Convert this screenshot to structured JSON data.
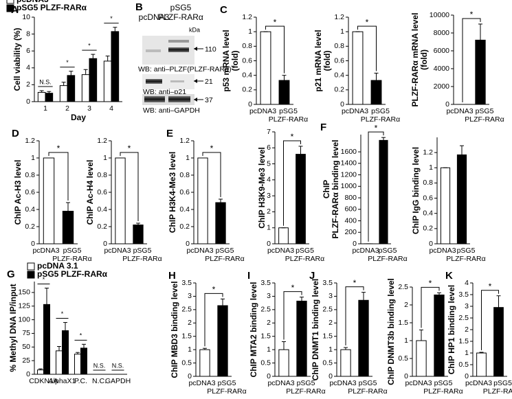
{
  "chart_data": [
    {
      "type": "bar",
      "panel": "A",
      "ylabel": [
        "Cell viability (%)"
      ],
      "xlabel": "Day",
      "categories": [
        [
          "1"
        ],
        [
          "2"
        ],
        [
          "3"
        ],
        [
          "4"
        ]
      ],
      "series": [
        {
          "name": "pcDNA3",
          "color": "#ffffff",
          "values": [
            1.1,
            1.9,
            3.2,
            4.8
          ],
          "errors": [
            0.2,
            0.4,
            0.6,
            0.6
          ]
        },
        {
          "name": "pSG5 PLZF-RARα",
          "color": "#000000",
          "values": [
            1.0,
            3.1,
            5.1,
            8.3
          ],
          "errors": [
            0.2,
            0.5,
            0.5,
            0.5
          ]
        }
      ],
      "annotations": [
        "N.S.",
        "*",
        "*",
        "*"
      ],
      "ylim": [
        0,
        10
      ],
      "yticks": [
        0,
        2,
        4,
        6,
        8,
        10
      ]
    },
    {
      "type": "bar",
      "panel": "C",
      "ylabel": [
        "p53 mRNA level",
        "(fold)"
      ],
      "categories": [
        [
          "pcDNA3"
        ],
        [
          "pSG5",
          "PLZF-RARα"
        ]
      ],
      "values": [
        1,
        0.33
      ],
      "errors": [
        0,
        0.07
      ],
      "colors": [
        "#ffffff",
        "#000000"
      ],
      "annotation": "*",
      "ylim": [
        0,
        1.2
      ],
      "yticks": [
        0,
        0.2,
        0.4,
        0.6,
        0.8,
        1,
        1.2
      ]
    },
    {
      "type": "bar",
      "ylabel": [
        "p21 mRNA level",
        "(fold)"
      ],
      "categories": [
        [
          "pcDNA3"
        ],
        [
          "pSG5",
          "PLZF-RARα"
        ]
      ],
      "values": [
        1,
        0.33
      ],
      "errors": [
        0,
        0.1
      ],
      "colors": [
        "#ffffff",
        "#000000"
      ],
      "annotation": "*",
      "ylim": [
        0,
        1.2
      ],
      "yticks": [
        0,
        0.2,
        0.4,
        0.6,
        0.8,
        1,
        1.2
      ]
    },
    {
      "type": "bar",
      "ylabel": [
        "PLZF-RARα mRNA level",
        "(fold)"
      ],
      "categories": [
        [
          "pcDNA3"
        ],
        [
          "pSG5",
          "PLZF-RARα"
        ]
      ],
      "values": [
        1,
        7200
      ],
      "errors": [
        0,
        1800
      ],
      "colors": [
        "#ffffff",
        "#000000"
      ],
      "annotation": "*",
      "ylim": [
        0,
        10000
      ],
      "yticks": [
        0,
        2000,
        4000,
        6000,
        8000,
        10000
      ]
    },
    {
      "type": "bar",
      "panel": "D",
      "ylabel": [
        "ChIP Ac-H3 level"
      ],
      "categories": [
        [
          "pcDNA3"
        ],
        [
          "pSG5",
          "PLZF-RARα"
        ]
      ],
      "values": [
        1,
        0.38
      ],
      "errors": [
        0,
        0.1
      ],
      "colors": [
        "#ffffff",
        "#000000"
      ],
      "annotation": "*",
      "ylim": [
        0,
        1.2
      ],
      "yticks": [
        0,
        0.2,
        0.4,
        0.6,
        0.8,
        1,
        1.2
      ]
    },
    {
      "type": "bar",
      "ylabel": [
        "ChIP Ac-H4 level"
      ],
      "categories": [
        [
          "pcDNA3"
        ],
        [
          "pSG5",
          "PLZF-RARα"
        ]
      ],
      "values": [
        1,
        0.22
      ],
      "errors": [
        0,
        0.02
      ],
      "colors": [
        "#ffffff",
        "#000000"
      ],
      "annotation": "*",
      "ylim": [
        0,
        1.2
      ],
      "yticks": [
        0,
        0.2,
        0.4,
        0.6,
        0.8,
        1,
        1.2
      ]
    },
    {
      "type": "bar",
      "panel": "E",
      "ylabel": [
        "ChIP H3K4-Me3 level"
      ],
      "categories": [
        [
          "pcDNA3"
        ],
        [
          "pSG5",
          "PLZF-RARα"
        ]
      ],
      "values": [
        1,
        0.48
      ],
      "errors": [
        0,
        0.04
      ],
      "colors": [
        "#ffffff",
        "#000000"
      ],
      "annotation": "*",
      "ylim": [
        0,
        1.2
      ],
      "yticks": [
        0,
        0.2,
        0.4,
        0.6,
        0.8,
        1,
        1.2
      ]
    },
    {
      "type": "bar",
      "ylabel": [
        "ChIP H3K9-Me3 level"
      ],
      "categories": [
        [
          "pcDNA3"
        ],
        [
          "pSG5",
          "PLZF-RARα"
        ]
      ],
      "values": [
        1,
        5.6
      ],
      "errors": [
        0,
        0.5
      ],
      "colors": [
        "#ffffff",
        "#000000"
      ],
      "annotation": "*",
      "ylim": [
        0,
        7
      ],
      "yticks": [
        0,
        1,
        2,
        3,
        4,
        5,
        6,
        7
      ]
    },
    {
      "type": "bar",
      "panel": "F",
      "ylabel": [
        "ChIP",
        "PLZF-RARα binding level"
      ],
      "categories": [
        [
          "pcDNA3"
        ],
        [
          "pSG5",
          "PLZF-RARα"
        ]
      ],
      "values": [
        1,
        1800
      ],
      "errors": [
        0,
        50
      ],
      "colors": [
        "#ffffff",
        "#000000"
      ],
      "annotation": "*",
      "ylim": [
        0,
        1900
      ],
      "yticks": [
        0,
        200,
        400,
        600,
        800,
        1000,
        1200,
        1400,
        1600
      ]
    },
    {
      "type": "bar",
      "ylabel": [
        "ChIP IgG binding level"
      ],
      "categories": [
        [
          "pcDNA3"
        ],
        [
          "pSG5",
          "PLZF-RARα"
        ]
      ],
      "values": [
        1,
        1.17
      ],
      "errors": [
        0,
        0.12
      ],
      "colors": [
        "#ffffff",
        "#000000"
      ],
      "ylim": [
        0,
        1.4
      ],
      "yticks": [
        0,
        0.2,
        0.4,
        0.6,
        0.8,
        1,
        1.2
      ]
    },
    {
      "type": "bar",
      "panel": "G",
      "ylabel": [
        "% Methyl DNA IP/input"
      ],
      "categories": [
        [
          "CDKN1A"
        ],
        [
          "AlphaX1"
        ],
        [
          "P.C."
        ],
        [
          "N.C."
        ],
        [
          "GAPDH"
        ]
      ],
      "series": [
        {
          "name": "pcDNA 3.1",
          "color": "#ffffff",
          "values": [
            8,
            43,
            37,
            0,
            0
          ],
          "errors": [
            2,
            8,
            3,
            0,
            0
          ]
        },
        {
          "name": "pSG5 PLZF-RARα",
          "color": "#000000",
          "values": [
            128,
            80,
            48,
            0,
            0
          ],
          "errors": [
            30,
            15,
            7,
            0,
            0
          ]
        }
      ],
      "annotations": [
        "*",
        "*",
        "*",
        "N.S.",
        "N.S."
      ],
      "ylim": [
        0,
        170
      ],
      "yticks": [
        0,
        25,
        50,
        75,
        100,
        125,
        150
      ]
    },
    {
      "type": "bar",
      "panel": "H",
      "ylabel": [
        "ChIP MBD3 binding level"
      ],
      "categories": [
        [
          "pcDNA3"
        ],
        [
          "pSG5",
          "PLZF-RARα"
        ]
      ],
      "values": [
        1,
        2.65
      ],
      "errors": [
        0.05,
        0.25
      ],
      "colors": [
        "#ffffff",
        "#000000"
      ],
      "annotation": "*",
      "ylim": [
        0,
        3.5
      ],
      "yticks": [
        0,
        0.5,
        1,
        1.5,
        2,
        2.5,
        3,
        3.5
      ]
    },
    {
      "type": "bar",
      "panel": "I",
      "ylabel": [
        "ChIP MTA2 binding level"
      ],
      "categories": [
        [
          "pcDNA3"
        ],
        [
          "pSG5",
          "PLZF-RARα"
        ]
      ],
      "values": [
        1,
        2.82
      ],
      "errors": [
        0.3,
        0.15
      ],
      "colors": [
        "#ffffff",
        "#000000"
      ],
      "annotation": "*",
      "ylim": [
        0,
        3.5
      ],
      "yticks": [
        0,
        0.5,
        1,
        1.5,
        2,
        2.5,
        3,
        3.5
      ]
    },
    {
      "type": "bar",
      "panel": "J",
      "ylabel": [
        "ChIP DNMT1 binding level"
      ],
      "categories": [
        [
          "pcDNA3"
        ],
        [
          "pSG5",
          "PLZF-RARα"
        ]
      ],
      "values": [
        1,
        2.85
      ],
      "errors": [
        0.08,
        0.3
      ],
      "colors": [
        "#ffffff",
        "#000000"
      ],
      "annotation": "*",
      "ylim": [
        0,
        3.5
      ],
      "yticks": [
        0,
        0.5,
        1,
        1.5,
        2,
        2.5,
        3,
        3.5
      ]
    },
    {
      "type": "bar",
      "ylabel": [
        "ChIP DNMT3b binding level"
      ],
      "categories": [
        [
          "pcDNA3"
        ],
        [
          "pSG5",
          "PLZF-RARα"
        ]
      ],
      "values": [
        1,
        2.28
      ],
      "errors": [
        0.3,
        0.06
      ],
      "colors": [
        "#ffffff",
        "#000000"
      ],
      "annotation": "*",
      "ylim": [
        0,
        2.5
      ],
      "yticks": [
        0,
        0.5,
        1,
        1.5,
        2,
        2.5
      ]
    },
    {
      "type": "bar",
      "panel": "K",
      "ylabel": [
        "ChIP HP1 binding level"
      ],
      "categories": [
        [
          "pcDNA3"
        ],
        [
          "pSG5",
          "PLZF-RARα"
        ]
      ],
      "values": [
        1,
        2.95
      ],
      "errors": [
        0.03,
        0.5
      ],
      "colors": [
        "#ffffff",
        "#000000"
      ],
      "annotation": "*",
      "ylim": [
        0,
        4
      ],
      "yticks": [
        0,
        0.5,
        1,
        1.5,
        2,
        2.5,
        3,
        3.5,
        4
      ]
    }
  ],
  "blot": {
    "panel": "B",
    "header": "pSG5",
    "lanes": [
      "pcDNA3",
      "PLZF-RARα"
    ],
    "unit": "kDa",
    "rows": [
      {
        "label": "WB: anti–PLZF(PLZF-RARα)",
        "mw": "110"
      },
      {
        "label": "WB: anti–p21",
        "mw": "21"
      },
      {
        "label": "WB: anti–GAPDH",
        "mw": "37"
      }
    ]
  }
}
